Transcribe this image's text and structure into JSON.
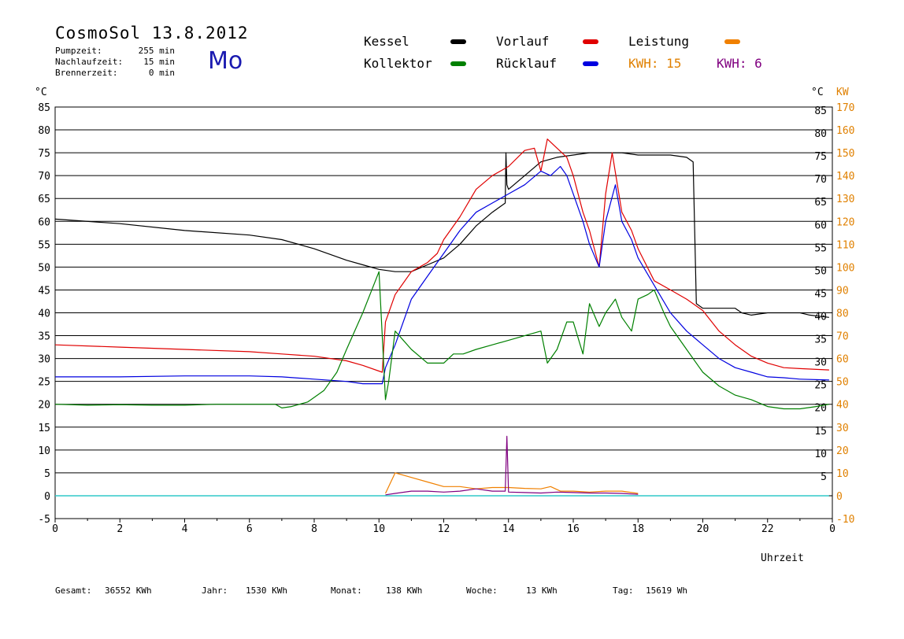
{
  "header": {
    "title": "CosmoSol 13.8.2012",
    "day": "Mo",
    "info": [
      {
        "label": "Pumpzeit:",
        "value": "255 min"
      },
      {
        "label": "Nachlaufzeit:",
        "value": "15 min"
      },
      {
        "label": "Brennerzeit:",
        "value": "0 min"
      }
    ]
  },
  "legend": {
    "kessel": {
      "label": "Kessel",
      "color": "#000000"
    },
    "vorlauf": {
      "label": "Vorlauf",
      "color": "#e00000"
    },
    "leistung": {
      "label": "Leistung",
      "color": "#f08000"
    },
    "kollektor": {
      "label": "Kollektor",
      "color": "#008000"
    },
    "ruecklauf": {
      "label": "Rücklauf",
      "color": "#0000e0"
    },
    "kwh1": {
      "label": "KWH: 15",
      "color": "#e08000"
    },
    "kwh2": {
      "label": "KWH: 6",
      "color": "#800080"
    }
  },
  "axes": {
    "left_unit": "°C",
    "right_unit_c": "°C",
    "right_unit_kw": "KW",
    "xlabel": "Uhrzeit"
  },
  "footer": {
    "gesamt_label": "Gesamt:",
    "gesamt_value": "36552 KWh",
    "jahr_label": "Jahr:",
    "jahr_value": "1530 KWh",
    "monat_label": "Monat:",
    "monat_value": "138 KWh",
    "woche_label": "Woche:",
    "woche_value": "13 KWh",
    "tag_label": "Tag:",
    "tag_value": "15619 Wh"
  },
  "chart_data": {
    "type": "line",
    "xlabel": "Uhrzeit",
    "ylabel": "°C",
    "y2label": "KW",
    "xlim": [
      0,
      24
    ],
    "ylim": [
      -5,
      85
    ],
    "y2lim": [
      -10,
      170
    ],
    "x_ticks": [
      "0",
      "2",
      "4",
      "6",
      "8",
      "10",
      "12",
      "14",
      "16",
      "18",
      "20",
      "22",
      "0"
    ],
    "y_ticks": [
      -5,
      0,
      5,
      10,
      15,
      20,
      25,
      30,
      35,
      40,
      45,
      50,
      55,
      60,
      65,
      70,
      75,
      80,
      85
    ],
    "y2_ticks": [
      -10,
      0,
      10,
      20,
      30,
      40,
      50,
      60,
      70,
      80,
      90,
      100,
      110,
      120,
      130,
      140,
      150,
      160,
      170
    ],
    "right_c_ticks": [
      5,
      10,
      15,
      20,
      25,
      30,
      35,
      40,
      45,
      50,
      55,
      60,
      65,
      70,
      75,
      80,
      85
    ],
    "grid": true,
    "legend_position": "top",
    "series": [
      {
        "name": "Kessel",
        "color": "#000000",
        "x": [
          0,
          2,
          4,
          6,
          7,
          8,
          9,
          9.5,
          10,
          10.5,
          11,
          11.5,
          12,
          12.5,
          13,
          13.5,
          13.9,
          13.92,
          13.95,
          14,
          14.5,
          15,
          15.5,
          16,
          16.5,
          17,
          17.5,
          18,
          18.5,
          19,
          19.5,
          19.7,
          19.8,
          20,
          21,
          21.2,
          21.5,
          22,
          22.5,
          23,
          23.3,
          23.9
        ],
        "y": [
          60.5,
          59.5,
          58,
          57,
          56,
          54,
          51.5,
          50.5,
          49.5,
          49,
          49,
          50.5,
          52,
          55,
          59,
          62,
          64,
          75,
          68,
          67,
          70,
          73,
          74,
          74.5,
          75,
          75,
          75,
          74.5,
          74.5,
          74.5,
          74,
          73,
          42,
          41,
          41,
          40,
          39.5,
          40,
          40,
          40,
          39.5,
          39
        ]
      },
      {
        "name": "Vorlauf",
        "color": "#e00000",
        "x": [
          0,
          2,
          4,
          6,
          7,
          8,
          9,
          9.5,
          10.1,
          10.2,
          10.5,
          11,
          11.5,
          11.8,
          12,
          12.5,
          13,
          13.5,
          14,
          14.5,
          14.8,
          15,
          15.2,
          15.5,
          15.8,
          16,
          16.3,
          16.5,
          16.8,
          17,
          17.2,
          17.5,
          17.8,
          18,
          18.5,
          19,
          19.5,
          20,
          20.5,
          21,
          21.5,
          22,
          22.5,
          23,
          23.9
        ],
        "y": [
          33,
          32.5,
          32,
          31.5,
          31,
          30.5,
          29.5,
          28.5,
          27,
          38,
          44,
          49,
          51,
          53,
          56,
          61,
          67,
          70,
          72,
          75.5,
          76,
          71,
          78,
          76,
          74,
          70,
          62,
          58,
          50,
          66,
          75,
          62,
          58,
          54,
          47,
          45,
          43,
          40.5,
          36,
          33,
          30.5,
          29,
          28,
          27.8,
          27.5
        ]
      },
      {
        "name": "Rücklauf",
        "color": "#0000e0",
        "x": [
          0,
          2,
          4,
          6,
          7,
          8,
          9,
          9.5,
          10.1,
          10.2,
          10.5,
          11,
          11.5,
          12,
          12.5,
          13,
          13.5,
          14,
          14.5,
          15,
          15.3,
          15.6,
          15.8,
          16,
          16.3,
          16.5,
          16.8,
          17,
          17.3,
          17.5,
          17.8,
          18,
          18.5,
          19,
          19.5,
          20,
          20.5,
          21,
          21.5,
          22,
          22.5,
          23,
          23.9
        ],
        "y": [
          26,
          26,
          26.2,
          26.2,
          26,
          25.5,
          25,
          24.5,
          24.5,
          28,
          33,
          43,
          48,
          53,
          58,
          62,
          64,
          66,
          68,
          71,
          70,
          72,
          70,
          66,
          60,
          55,
          50,
          60,
          68,
          60,
          56,
          52,
          46,
          40,
          36,
          33,
          30,
          28,
          27,
          26,
          25.8,
          25.5,
          25.3
        ]
      },
      {
        "name": "Kollektor",
        "color": "#008000",
        "x": [
          0,
          1,
          2,
          3,
          4,
          5,
          6,
          6.8,
          7,
          7.3,
          7.8,
          8.3,
          8.7,
          9,
          9.5,
          10,
          10.2,
          10.3,
          10.5,
          11,
          11.5,
          12,
          12.3,
          12.6,
          13,
          13.5,
          14,
          14.5,
          15,
          15.2,
          15.5,
          15.8,
          16,
          16.3,
          16.5,
          16.8,
          17,
          17.3,
          17.5,
          17.8,
          18,
          18.3,
          18.5,
          18.8,
          19,
          19.5,
          20,
          20.5,
          21,
          21.5,
          22,
          22.5,
          23,
          23.5,
          23.9
        ],
        "y": [
          20,
          19.8,
          19.9,
          19.8,
          19.8,
          20,
          20,
          20,
          19.2,
          19.5,
          20.5,
          23,
          27,
          32,
          40,
          49,
          21,
          25,
          36,
          32,
          29,
          29,
          31,
          31,
          32,
          33,
          34,
          35,
          36,
          29,
          32,
          38,
          38,
          31,
          42,
          37,
          40,
          43,
          39,
          36,
          43,
          44,
          45,
          40,
          37,
          32,
          27,
          24,
          22,
          21,
          19.5,
          19,
          19,
          19.5,
          20
        ]
      },
      {
        "name": "Leistung",
        "color": "#f08000",
        "x": [
          10.2,
          10.5,
          11,
          11.5,
          12,
          12.5,
          13,
          13.5,
          14,
          14.5,
          15,
          15.3,
          15.6,
          16,
          16.5,
          17,
          17.5,
          18
        ],
        "y": [
          0.5,
          5,
          4,
          3,
          2,
          2,
          1.5,
          1.8,
          1.8,
          1.6,
          1.5,
          2,
          1,
          1,
          0.8,
          1,
          1,
          0.5
        ]
      },
      {
        "name": "KWH",
        "color": "#800080",
        "x": [
          10.2,
          10.5,
          11,
          11.5,
          12,
          12.5,
          13,
          13.5,
          13.9,
          13.95,
          14,
          14.5,
          15,
          15.5,
          16,
          16.5,
          17,
          17.5,
          18
        ],
        "y": [
          0.2,
          0.5,
          1,
          1,
          0.8,
          1,
          1.5,
          1,
          1,
          13,
          0.8,
          0.7,
          0.6,
          0.8,
          0.7,
          0.6,
          0.6,
          0.5,
          0.3
        ]
      }
    ]
  }
}
